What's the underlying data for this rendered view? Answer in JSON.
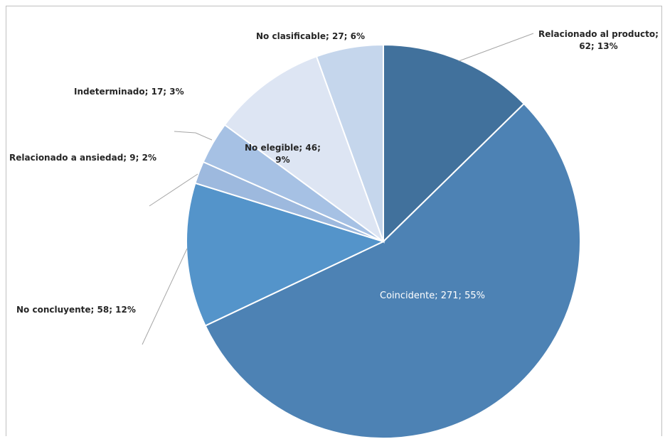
{
  "chart_data": {
    "type": "pie",
    "slices": [
      {
        "name": "Relacionado al producto",
        "value": 62,
        "pct": "13%",
        "color": "#41719c",
        "label": "Relacionado al producto;",
        "label2": "62; 13%"
      },
      {
        "name": "Coincidente",
        "value": 271,
        "pct": "55%",
        "color": "#4d82b4",
        "label": "Coincidente; 271; 55%"
      },
      {
        "name": "No concluyente",
        "value": 58,
        "pct": "12%",
        "color": "#5494ca",
        "label": "No concluyente; 58; 12%"
      },
      {
        "name": "Relacionado a ansiedad",
        "value": 9,
        "pct": "2%",
        "color": "#9db9de",
        "label": "Relacionado a ansiedad; 9; 2%"
      },
      {
        "name": "Indeterminado",
        "value": 17,
        "pct": "3%",
        "color": "#a6c1e4",
        "label": "Indeterminado; 17; 3%"
      },
      {
        "name": "No elegible",
        "value": 46,
        "pct": "9%",
        "color": "#dde5f3",
        "label": "No elegible; 46;",
        "label2": "9%"
      },
      {
        "name": "No clasificable",
        "value": 27,
        "pct": "6%",
        "color": "#c5d6ec",
        "label": "No clasificable; 27; 6%"
      }
    ]
  }
}
